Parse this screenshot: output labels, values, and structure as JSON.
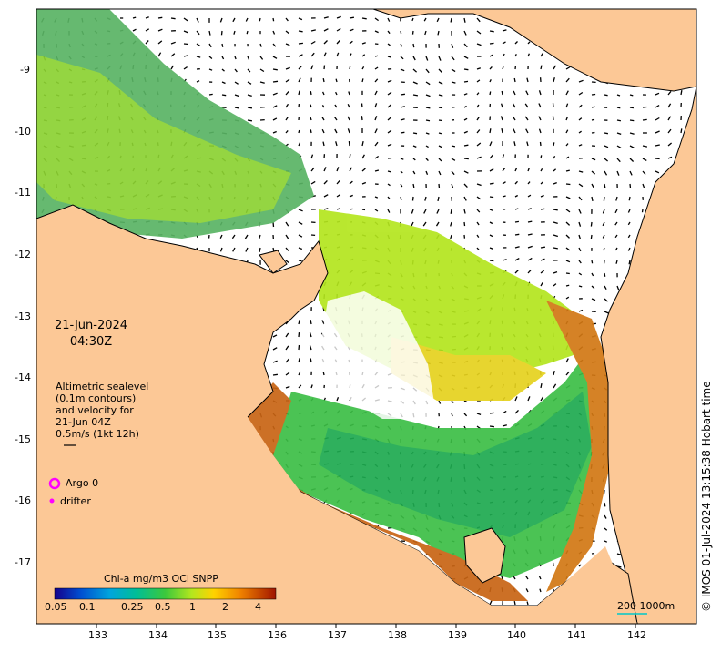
{
  "map": {
    "date": "21-Jun-2024",
    "time": "04:30Z",
    "info_lines": [
      "Altimetric sealevel",
      "(0.1m contours)",
      "and velocity for",
      "21-Jun 04Z",
      "0.5m/s (1kt 12h)"
    ],
    "legend": {
      "argo": "Argo 0",
      "drifter": "drifter"
    },
    "colorbar": {
      "title": "Chl-a mg/m3 OCi SNPP",
      "ticks": [
        "0.05",
        "0.1",
        "0.25",
        "0.5",
        "1",
        "2",
        "4"
      ]
    },
    "scale_label": "200  1000m",
    "credit": "© IMOS 01-Jul-2024 13:15:38 Hobart time",
    "lon_labels": [
      "133",
      "134",
      "135",
      "136",
      "137",
      "138",
      "139",
      "140",
      "141",
      "142"
    ],
    "lat_labels": [
      "-9",
      "-10",
      "-11",
      "-12",
      "-13",
      "-14",
      "-15",
      "-16",
      "-17"
    ],
    "colors": {
      "land": "#fcc896",
      "ocean": "#ffffff",
      "argo_marker": "#ff00ff",
      "drifter_marker": "#ff00ff",
      "scale_line": "#00c8c8"
    }
  }
}
